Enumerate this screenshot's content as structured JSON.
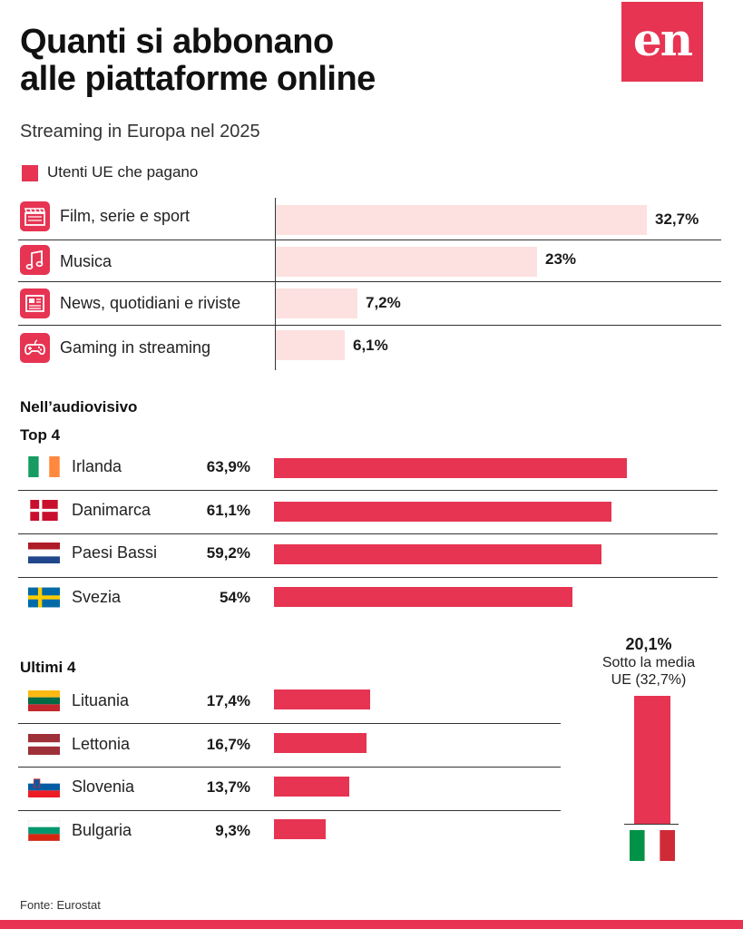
{
  "header": {
    "title_line1": "Quanti si abbonano",
    "title_line2": "alle piattaforme online",
    "subtitle": "Streaming in Europa nel 2025",
    "logo_text": "en"
  },
  "colors": {
    "accent": "#e63452",
    "light_bar": "#fde0e0"
  },
  "chart_data": [
    {
      "type": "bar",
      "orientation": "horizontal",
      "legend": [
        "Utenti UE che pagano"
      ],
      "categories": [
        "Film, serie e sport",
        "Musica",
        "News, quotidiani e riviste",
        "Gaming in streaming"
      ],
      "icons": [
        "clapperboard-icon",
        "music-note-icon",
        "newspaper-icon",
        "gamepad-icon"
      ],
      "values": [
        32.7,
        23,
        7.2,
        6.1
      ],
      "value_labels": [
        "32,7%",
        "23%",
        "7,2%",
        "6,1%"
      ],
      "xlim": [
        0,
        40
      ]
    },
    {
      "type": "bar",
      "orientation": "horizontal",
      "title": "Nell’audiovisivo",
      "groups": [
        {
          "label": "Top 4",
          "categories": [
            "Irlanda",
            "Danimarca",
            "Paesi Bassi",
            "Svezia"
          ],
          "flags": [
            "ie",
            "dk",
            "nl",
            "se"
          ],
          "values": [
            63.9,
            61.1,
            59.2,
            54
          ],
          "value_labels": [
            "63,9%",
            "61,1%",
            "59,2%",
            "54%"
          ]
        },
        {
          "label": "Ultimi 4",
          "categories": [
            "Lituania",
            "Lettonia",
            "Slovenia",
            "Bulgaria"
          ],
          "flags": [
            "lt",
            "lv",
            "si",
            "bg"
          ],
          "values": [
            17.4,
            16.7,
            13.7,
            9.3
          ],
          "value_labels": [
            "17,4%",
            "16,7%",
            "13,7%",
            "9,3%"
          ]
        }
      ],
      "xlim": [
        0,
        65
      ]
    },
    {
      "type": "bar",
      "orientation": "vertical",
      "categories": [
        "Italia"
      ],
      "flags": [
        "it"
      ],
      "values": [
        20.1
      ],
      "value_label": "20,1%",
      "note_line1": "Sotto la media",
      "note_line2": "UE (32,7%)"
    }
  ],
  "source": "Fonte: Eurostat"
}
